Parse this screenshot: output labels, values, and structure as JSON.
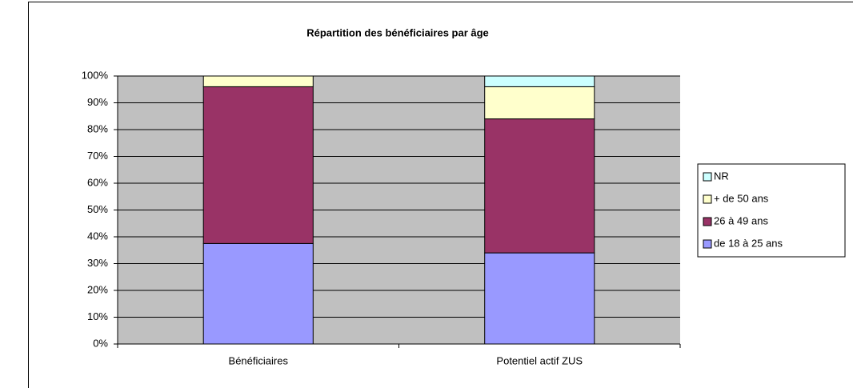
{
  "chart_data": {
    "type": "stacked_bar",
    "title": "Répartition des bénéficiaires par âge",
    "categories": [
      "Bénéficiaires",
      "Potentiel actif ZUS"
    ],
    "series": [
      {
        "name": "de 18 à 25 ans",
        "color": "#9999ff",
        "values": [
          37.5,
          34
        ]
      },
      {
        "name": "26 à 49 ans",
        "color": "#993366",
        "values": [
          58.5,
          50
        ]
      },
      {
        "name": "+ de 50 ans",
        "color": "#ffffcc",
        "values": [
          4,
          12
        ]
      },
      {
        "name": "NR",
        "color": "#ccffff",
        "values": [
          0,
          4
        ]
      }
    ],
    "ylim": [
      0,
      100
    ],
    "yticks": [
      {
        "value": 0,
        "label": "0%"
      },
      {
        "value": 10,
        "label": "10%"
      },
      {
        "value": 20,
        "label": "20%"
      },
      {
        "value": 30,
        "label": "30%"
      },
      {
        "value": 40,
        "label": "40%"
      },
      {
        "value": 50,
        "label": "50%"
      },
      {
        "value": 60,
        "label": "60%"
      },
      {
        "value": 70,
        "label": "70%"
      },
      {
        "value": 80,
        "label": "80%"
      },
      {
        "value": 90,
        "label": "90%"
      },
      {
        "value": 100,
        "label": "100%"
      }
    ],
    "grid": true,
    "legend": "right"
  }
}
